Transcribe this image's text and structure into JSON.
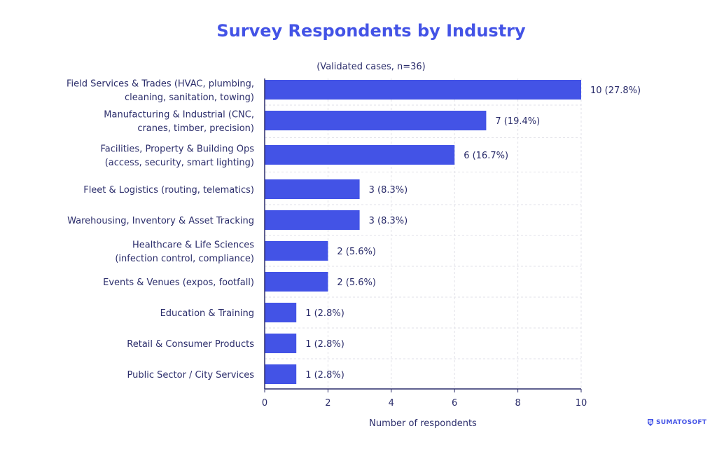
{
  "chart_data": {
    "type": "bar",
    "orientation": "horizontal",
    "title": "Survey Respondents by Industry",
    "subtitle": "(Validated cases, n=36)",
    "xlabel": "Number of respondents",
    "ylabel": "",
    "xlim": [
      0,
      10
    ],
    "xticks": [
      "0",
      "2",
      "4",
      "6",
      "8",
      "10"
    ],
    "grid": true,
    "categories": [
      [
        "Field Services & Trades (HVAC, plumbing,",
        "cleaning, sanitation, towing)"
      ],
      [
        "Manufacturing & Industrial (CNC,",
        "cranes, timber, precision)"
      ],
      [
        "Facilities, Property & Building Ops",
        "(access, security, smart lighting)"
      ],
      [
        "Fleet & Logistics (routing, telematics)"
      ],
      [
        "Warehousing, Inventory & Asset Tracking"
      ],
      [
        "Healthcare & Life Sciences",
        "(infection control, compliance)"
      ],
      [
        "Events & Venues (expos, footfall)"
      ],
      [
        "Education & Training"
      ],
      [
        "Retail & Consumer Products"
      ],
      [
        "Public Sector / City Services"
      ]
    ],
    "values": [
      10,
      7,
      6,
      3,
      3,
      2,
      2,
      1,
      1,
      1
    ],
    "data_labels": [
      "10 (27.8%)",
      "7 (19.4%)",
      "6 (16.7%)",
      "3 (8.3%)",
      "3 (8.3%)",
      "2 (5.6%)",
      "2 (5.6%)",
      "1 (2.8%)",
      "1 (2.8%)",
      "1 (2.8%)"
    ],
    "colors": {
      "bar": "#4353e6",
      "title": "#4353e6",
      "text": "#2b2d6b"
    }
  },
  "logo": {
    "text": "SUMATOSOFT"
  }
}
